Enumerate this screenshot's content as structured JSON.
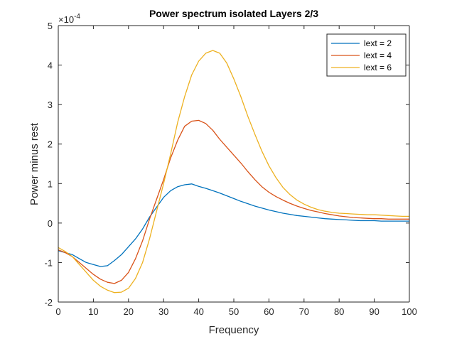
{
  "chart_data": {
    "type": "line",
    "title": "Power spectrum isolated Layers 2/3",
    "xlabel": "Frequency",
    "ylabel": "Power minus rest",
    "xlim": [
      0,
      100
    ],
    "ylim": [
      -2,
      5
    ],
    "y_exponent_prefix": "×10",
    "y_exponent_power": "-4",
    "xticks": [
      0,
      10,
      20,
      30,
      40,
      50,
      60,
      70,
      80,
      90,
      100
    ],
    "yticks": [
      -2,
      -1,
      0,
      1,
      2,
      3,
      4,
      5
    ],
    "grid": false,
    "legend_position": "top-right",
    "x": [
      0,
      2,
      4,
      6,
      8,
      10,
      12,
      14,
      16,
      18,
      20,
      22,
      24,
      26,
      28,
      30,
      32,
      34,
      36,
      38,
      40,
      42,
      44,
      46,
      48,
      50,
      52,
      54,
      56,
      58,
      60,
      62,
      64,
      66,
      68,
      70,
      72,
      74,
      76,
      78,
      80,
      82,
      84,
      86,
      88,
      90,
      92,
      94,
      96,
      98,
      100
    ],
    "series": [
      {
        "name": "lext = 2",
        "color": "#0072bd",
        "values": [
          -0.7,
          -0.75,
          -0.8,
          -0.9,
          -1.0,
          -1.05,
          -1.1,
          -1.08,
          -0.95,
          -0.8,
          -0.6,
          -0.4,
          -0.15,
          0.15,
          0.4,
          0.65,
          0.82,
          0.92,
          0.97,
          0.99,
          0.93,
          0.88,
          0.82,
          0.76,
          0.69,
          0.62,
          0.55,
          0.49,
          0.43,
          0.38,
          0.33,
          0.29,
          0.25,
          0.22,
          0.19,
          0.17,
          0.15,
          0.13,
          0.11,
          0.1,
          0.09,
          0.08,
          0.07,
          0.06,
          0.06,
          0.06,
          0.05,
          0.05,
          0.05,
          0.05,
          0.05
        ]
      },
      {
        "name": "lext = 4",
        "color": "#d95319",
        "values": [
          -0.68,
          -0.75,
          -0.85,
          -1.0,
          -1.15,
          -1.3,
          -1.42,
          -1.5,
          -1.53,
          -1.45,
          -1.25,
          -0.9,
          -0.45,
          0.1,
          0.6,
          1.1,
          1.65,
          2.1,
          2.45,
          2.58,
          2.6,
          2.52,
          2.35,
          2.12,
          1.92,
          1.72,
          1.52,
          1.3,
          1.1,
          0.92,
          0.78,
          0.67,
          0.58,
          0.5,
          0.43,
          0.37,
          0.32,
          0.28,
          0.24,
          0.21,
          0.18,
          0.16,
          0.14,
          0.13,
          0.12,
          0.11,
          0.11,
          0.1,
          0.1,
          0.1,
          0.1
        ]
      },
      {
        "name": "lext = 6",
        "color": "#edb120",
        "values": [
          -0.62,
          -0.72,
          -0.85,
          -1.05,
          -1.25,
          -1.45,
          -1.6,
          -1.7,
          -1.76,
          -1.75,
          -1.65,
          -1.4,
          -1.0,
          -0.4,
          0.3,
          1.0,
          1.75,
          2.55,
          3.2,
          3.75,
          4.1,
          4.3,
          4.37,
          4.3,
          4.05,
          3.65,
          3.2,
          2.7,
          2.25,
          1.82,
          1.45,
          1.15,
          0.9,
          0.72,
          0.58,
          0.48,
          0.4,
          0.34,
          0.3,
          0.27,
          0.25,
          0.24,
          0.23,
          0.22,
          0.21,
          0.21,
          0.2,
          0.19,
          0.18,
          0.17,
          0.17
        ]
      }
    ]
  }
}
